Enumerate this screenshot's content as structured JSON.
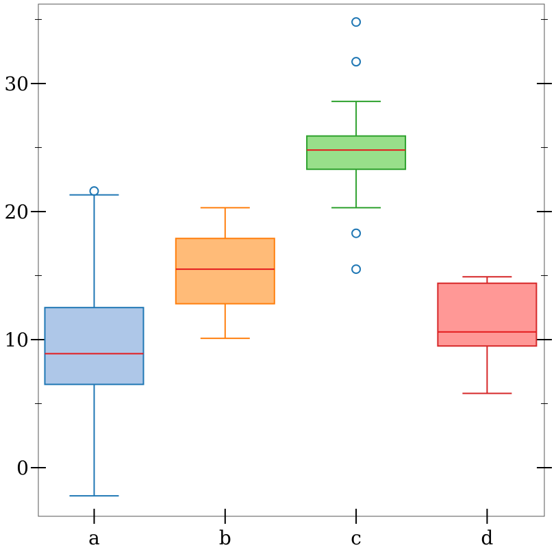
{
  "chart_data": {
    "type": "box",
    "title": "",
    "xlabel": "",
    "ylabel": "",
    "ylim": [
      -3.8,
      36.2
    ],
    "y_ticks_major": [
      0,
      10,
      20,
      30
    ],
    "y_ticks_minor": [
      5,
      15,
      25,
      35
    ],
    "y_tick_labels": [
      "0",
      "10",
      "20",
      "30"
    ],
    "grid": false,
    "median_color": "#e41a1c",
    "boxes": [
      {
        "category": "a",
        "whisker_low": -2.2,
        "q1": 6.5,
        "median": 8.9,
        "q3": 12.5,
        "whisker_high": 21.3,
        "outliers": [
          21.6
        ],
        "stroke": "#1f77b4",
        "fill": "#aec7e8"
      },
      {
        "category": "b",
        "whisker_low": 10.1,
        "q1": 12.8,
        "median": 15.5,
        "q3": 17.9,
        "whisker_high": 20.3,
        "outliers": [],
        "stroke": "#ff7f0e",
        "fill": "#ffbb78"
      },
      {
        "category": "c",
        "whisker_low": 20.3,
        "q1": 23.3,
        "median": 24.8,
        "q3": 25.9,
        "whisker_high": 28.6,
        "outliers": [
          15.5,
          18.3,
          31.7,
          34.8
        ],
        "stroke": "#2ca02c",
        "fill": "#98df8a"
      },
      {
        "category": "d",
        "whisker_low": 5.8,
        "q1": 9.5,
        "median": 10.6,
        "q3": 14.4,
        "whisker_high": 14.9,
        "outliers": [],
        "stroke": "#d62728",
        "fill": "#ff9896"
      }
    ]
  }
}
